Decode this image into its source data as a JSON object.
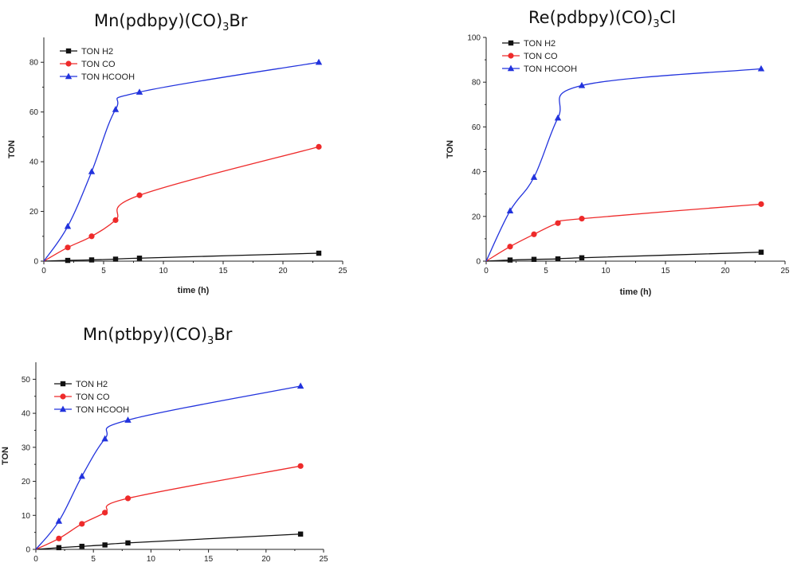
{
  "colors": {
    "h2": "#111111",
    "co": "#ee2a2a",
    "hcooh": "#2233dd"
  },
  "chart_data": [
    {
      "type": "line",
      "title_main": "Mn(pdbpy)(CO)",
      "title_sub": "3",
      "title_end": "Br",
      "xlabel": "time (h)",
      "ylabel": "TON",
      "xlim": [
        0,
        25
      ],
      "ylim": [
        0,
        90
      ],
      "xticks": [
        0,
        5,
        10,
        15,
        20,
        25
      ],
      "yticks": [
        0,
        20,
        40,
        60,
        80
      ],
      "legend_position": "top-left",
      "series": [
        {
          "name": "TON H2",
          "marker": "square",
          "color": "#111111",
          "x": [
            0,
            2,
            4,
            6,
            8,
            23
          ],
          "y": [
            0,
            0.3,
            0.5,
            0.8,
            1.2,
            3.2
          ]
        },
        {
          "name": "TON CO",
          "marker": "circle",
          "color": "#ee2a2a",
          "x": [
            0,
            2,
            4,
            6,
            8,
            23
          ],
          "y": [
            0,
            5.5,
            10,
            16.5,
            26.5,
            46
          ]
        },
        {
          "name": "TON HCOOH",
          "marker": "triangle",
          "color": "#2233dd",
          "x": [
            0,
            2,
            4,
            6,
            8,
            23
          ],
          "y": [
            0,
            14,
            36,
            61,
            68,
            80
          ]
        }
      ]
    },
    {
      "type": "line",
      "title_main": "Re(pdbpy)(CO)",
      "title_sub": "3",
      "title_end": "Cl",
      "xlabel": "time (h)",
      "ylabel": "TON",
      "xlim": [
        0,
        25
      ],
      "ylim": [
        0,
        100
      ],
      "xticks": [
        0,
        5,
        10,
        15,
        20,
        25
      ],
      "yticks": [
        0,
        20,
        40,
        60,
        80,
        100
      ],
      "legend_position": "top-left",
      "series": [
        {
          "name": "TON H2",
          "marker": "square",
          "color": "#111111",
          "x": [
            0,
            2,
            4,
            6,
            8,
            23
          ],
          "y": [
            0,
            0.5,
            0.8,
            1.0,
            1.5,
            4
          ]
        },
        {
          "name": "TON CO",
          "marker": "circle",
          "color": "#ee2a2a",
          "x": [
            0,
            2,
            4,
            6,
            8,
            23
          ],
          "y": [
            0,
            6.5,
            12,
            17,
            19,
            25.5
          ]
        },
        {
          "name": "TON HCOOH",
          "marker": "triangle",
          "color": "#2233dd",
          "x": [
            0,
            2,
            4,
            6,
            8,
            23
          ],
          "y": [
            0,
            22.5,
            37.5,
            64,
            78.5,
            86
          ]
        }
      ]
    },
    {
      "type": "line",
      "title_main": "Mn(ptbpy)(CO)",
      "title_sub": "3",
      "title_end": "Br",
      "xlabel": "",
      "ylabel": "TON",
      "xlim": [
        0,
        25
      ],
      "ylim": [
        0,
        55
      ],
      "xticks": [
        0,
        5,
        10,
        15,
        20,
        25
      ],
      "yticks": [
        0,
        10,
        20,
        30,
        40,
        50
      ],
      "legend_position": "top-left",
      "series": [
        {
          "name": "TON H2",
          "marker": "square",
          "color": "#111111",
          "x": [
            0,
            2,
            4,
            6,
            8,
            23
          ],
          "y": [
            0,
            0.5,
            0.9,
            1.3,
            1.9,
            4.5
          ]
        },
        {
          "name": "TON CO",
          "marker": "circle",
          "color": "#ee2a2a",
          "x": [
            0,
            2,
            4,
            6,
            8,
            23
          ],
          "y": [
            0,
            3.2,
            7.5,
            10.8,
            15,
            24.5
          ]
        },
        {
          "name": "TON HCOOH",
          "marker": "triangle",
          "color": "#2233dd",
          "x": [
            0,
            2,
            4,
            6,
            8,
            23
          ],
          "y": [
            0,
            8.3,
            21.5,
            32.5,
            38,
            48
          ]
        }
      ]
    }
  ]
}
